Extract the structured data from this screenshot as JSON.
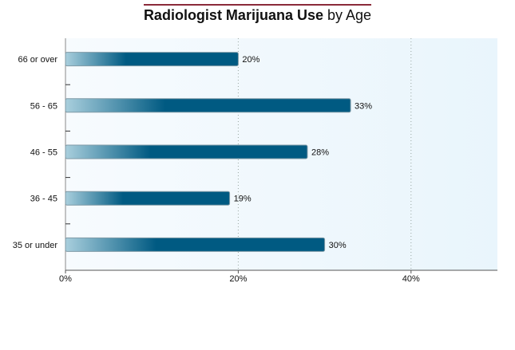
{
  "chart_data": {
    "type": "bar",
    "orientation": "horizontal",
    "title_bold": "Radiologist Marijuana Use",
    "title_light": "by Age",
    "categories": [
      "66 or over",
      "56 - 65",
      "46 - 55",
      "36 - 45",
      "35 or under"
    ],
    "values": [
      20,
      33,
      28,
      19,
      30
    ],
    "value_labels": [
      "20%",
      "33%",
      "28%",
      "19%",
      "30%"
    ],
    "xlim": [
      0,
      50
    ],
    "xticks": [
      0,
      20,
      40
    ],
    "xtick_labels": [
      "0%",
      "20%",
      "40%"
    ],
    "grid": "vertical dotted",
    "colors": {
      "bar_dark": "#005a82",
      "bar_light": "#a9cfdd",
      "plot_bg": "#eef7fc",
      "title_rule": "#8a2a3a"
    }
  }
}
